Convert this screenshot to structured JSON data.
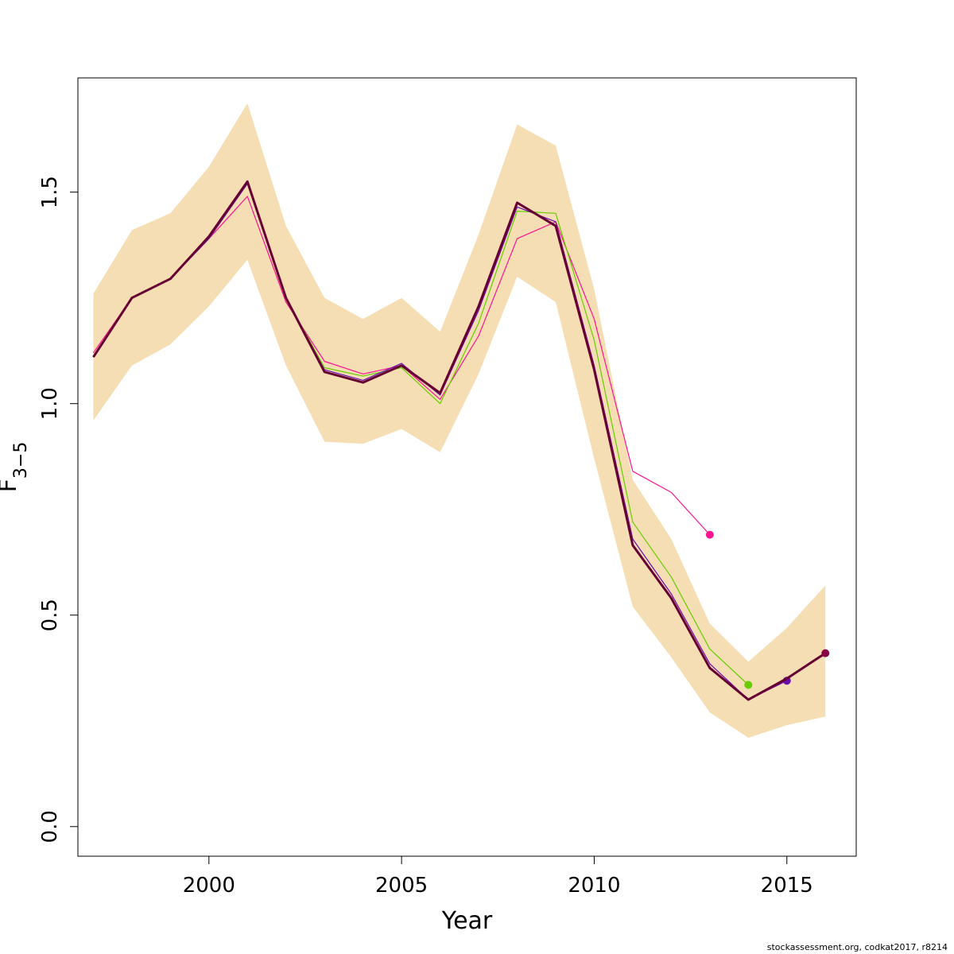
{
  "chart_data": {
    "type": "line",
    "xlabel": "Year",
    "ylabel": "F",
    "ylabel_subscript": "3−5",
    "xlim": [
      1996.6,
      2016.8
    ],
    "ylim": [
      -0.07,
      1.77
    ],
    "x_ticks": [
      2000,
      2005,
      2010,
      2015
    ],
    "x_tick_labels": [
      "2000",
      "2005",
      "2010",
      "2015"
    ],
    "y_ticks": [
      0.0,
      0.5,
      1.0,
      1.5
    ],
    "y_tick_labels": [
      "0.0",
      "0.5",
      "1.0",
      "1.5"
    ],
    "grid": false,
    "band": {
      "color": "#f5deb3",
      "x": [
        1997,
        1998,
        1999,
        2000,
        2001,
        2002,
        2003,
        2004,
        2005,
        2006,
        2007,
        2008,
        2009,
        2010,
        2011,
        2012,
        2013,
        2014,
        2015,
        2016
      ],
      "lower": [
        0.96,
        1.09,
        1.14,
        1.23,
        1.34,
        1.09,
        0.91,
        0.905,
        0.94,
        0.885,
        1.07,
        1.3,
        1.24,
        0.87,
        0.52,
        0.4,
        0.27,
        0.21,
        0.24,
        0.26
      ],
      "upper": [
        1.26,
        1.41,
        1.45,
        1.56,
        1.71,
        1.42,
        1.25,
        1.2,
        1.25,
        1.17,
        1.4,
        1.66,
        1.61,
        1.27,
        0.82,
        0.68,
        0.48,
        0.39,
        0.47,
        0.57
      ]
    },
    "series": [
      {
        "color": "#ff1493",
        "width": 1.2,
        "end_point": true,
        "x": [
          1997,
          1998,
          1999,
          2000,
          2001,
          2002,
          2003,
          2004,
          2005,
          2006,
          2007,
          2008,
          2009,
          2010,
          2011,
          2012,
          2013
        ],
        "values": [
          1.12,
          1.25,
          1.295,
          1.39,
          1.49,
          1.24,
          1.1,
          1.07,
          1.09,
          1.01,
          1.16,
          1.39,
          1.43,
          1.2,
          0.84,
          0.79,
          0.69
        ]
      },
      {
        "color": "#66cd00",
        "width": 1.2,
        "end_point": true,
        "x": [
          1997,
          1998,
          1999,
          2000,
          2001,
          2002,
          2003,
          2004,
          2005,
          2006,
          2007,
          2008,
          2009,
          2010,
          2011,
          2012,
          2013,
          2014
        ],
        "values": [
          1.11,
          1.25,
          1.295,
          1.39,
          1.52,
          1.25,
          1.085,
          1.065,
          1.085,
          1.0,
          1.19,
          1.455,
          1.45,
          1.15,
          0.72,
          0.59,
          0.42,
          0.335
        ]
      },
      {
        "color": "#6a0dad",
        "width": 1.2,
        "end_point": true,
        "x": [
          1997,
          1998,
          1999,
          2000,
          2001,
          2002,
          2003,
          2004,
          2005,
          2006,
          2007,
          2008,
          2009,
          2010,
          2011,
          2012,
          2013,
          2014,
          2015
        ],
        "values": [
          1.11,
          1.25,
          1.295,
          1.39,
          1.52,
          1.25,
          1.08,
          1.055,
          1.095,
          1.02,
          1.22,
          1.465,
          1.43,
          1.09,
          0.68,
          0.55,
          0.385,
          0.3,
          0.345
        ]
      },
      {
        "color": "#660033",
        "width": 3.0,
        "end_point": true,
        "end_color": "#8b0045",
        "x": [
          1997,
          1998,
          1999,
          2000,
          2001,
          2002,
          2003,
          2004,
          2005,
          2006,
          2007,
          2008,
          2009,
          2010,
          2011,
          2012,
          2013,
          2014,
          2015,
          2016
        ],
        "values": [
          1.11,
          1.25,
          1.295,
          1.395,
          1.525,
          1.25,
          1.075,
          1.05,
          1.09,
          1.025,
          1.23,
          1.475,
          1.42,
          1.08,
          0.665,
          0.54,
          0.375,
          0.3,
          0.35,
          0.41
        ]
      }
    ]
  },
  "footer": "stockassessment.org, codkat2017, r8214"
}
